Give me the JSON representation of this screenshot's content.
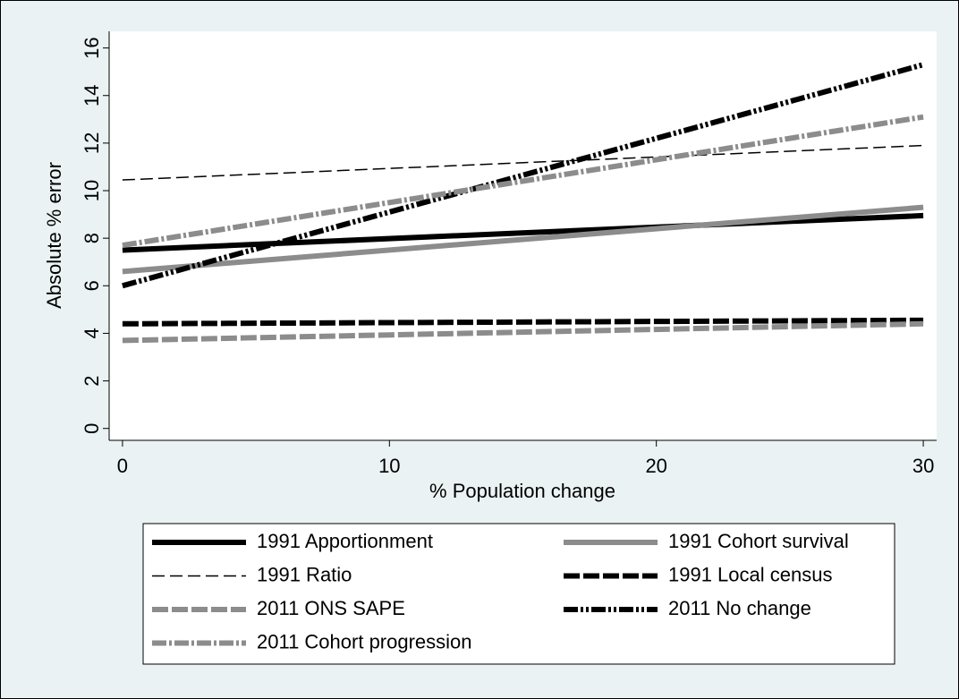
{
  "chart_data": {
    "type": "line",
    "x_label": "% Population change",
    "y_label": "Absolute % error",
    "x": [
      0,
      30
    ],
    "xlim": [
      -0.5,
      30.5
    ],
    "ylim": [
      -0.5,
      16.7
    ],
    "xticks": [
      0,
      10,
      20,
      30
    ],
    "yticks": [
      0,
      2,
      4,
      6,
      8,
      10,
      12,
      14,
      16
    ],
    "grid": false,
    "legend_position": "bottom",
    "series": [
      {
        "name": "1991 Apportionment",
        "color": "#000000",
        "style": "thick-solid",
        "values": [
          7.5,
          8.95
        ]
      },
      {
        "name": "1991 Cohort survival",
        "color": "#8c8c8c",
        "style": "thick-solid",
        "values": [
          6.6,
          9.3
        ]
      },
      {
        "name": "1991 Ratio",
        "color": "#000000",
        "style": "thin-dash",
        "values": [
          10.45,
          11.9
        ]
      },
      {
        "name": "1991 Local census",
        "color": "#000000",
        "style": "thick-dash",
        "values": [
          4.4,
          4.55
        ]
      },
      {
        "name": "2011 ONS SAPE",
        "color": "#8c8c8c",
        "style": "thick-dash",
        "values": [
          3.7,
          4.4
        ]
      },
      {
        "name": "2011 No change",
        "color": "#000000",
        "style": "thick-dash-dot-dot",
        "values": [
          6.0,
          15.3
        ]
      },
      {
        "name": "2011 Cohort progression",
        "color": "#8c8c8c",
        "style": "thick-dash-dot",
        "values": [
          7.7,
          13.1
        ]
      }
    ]
  }
}
